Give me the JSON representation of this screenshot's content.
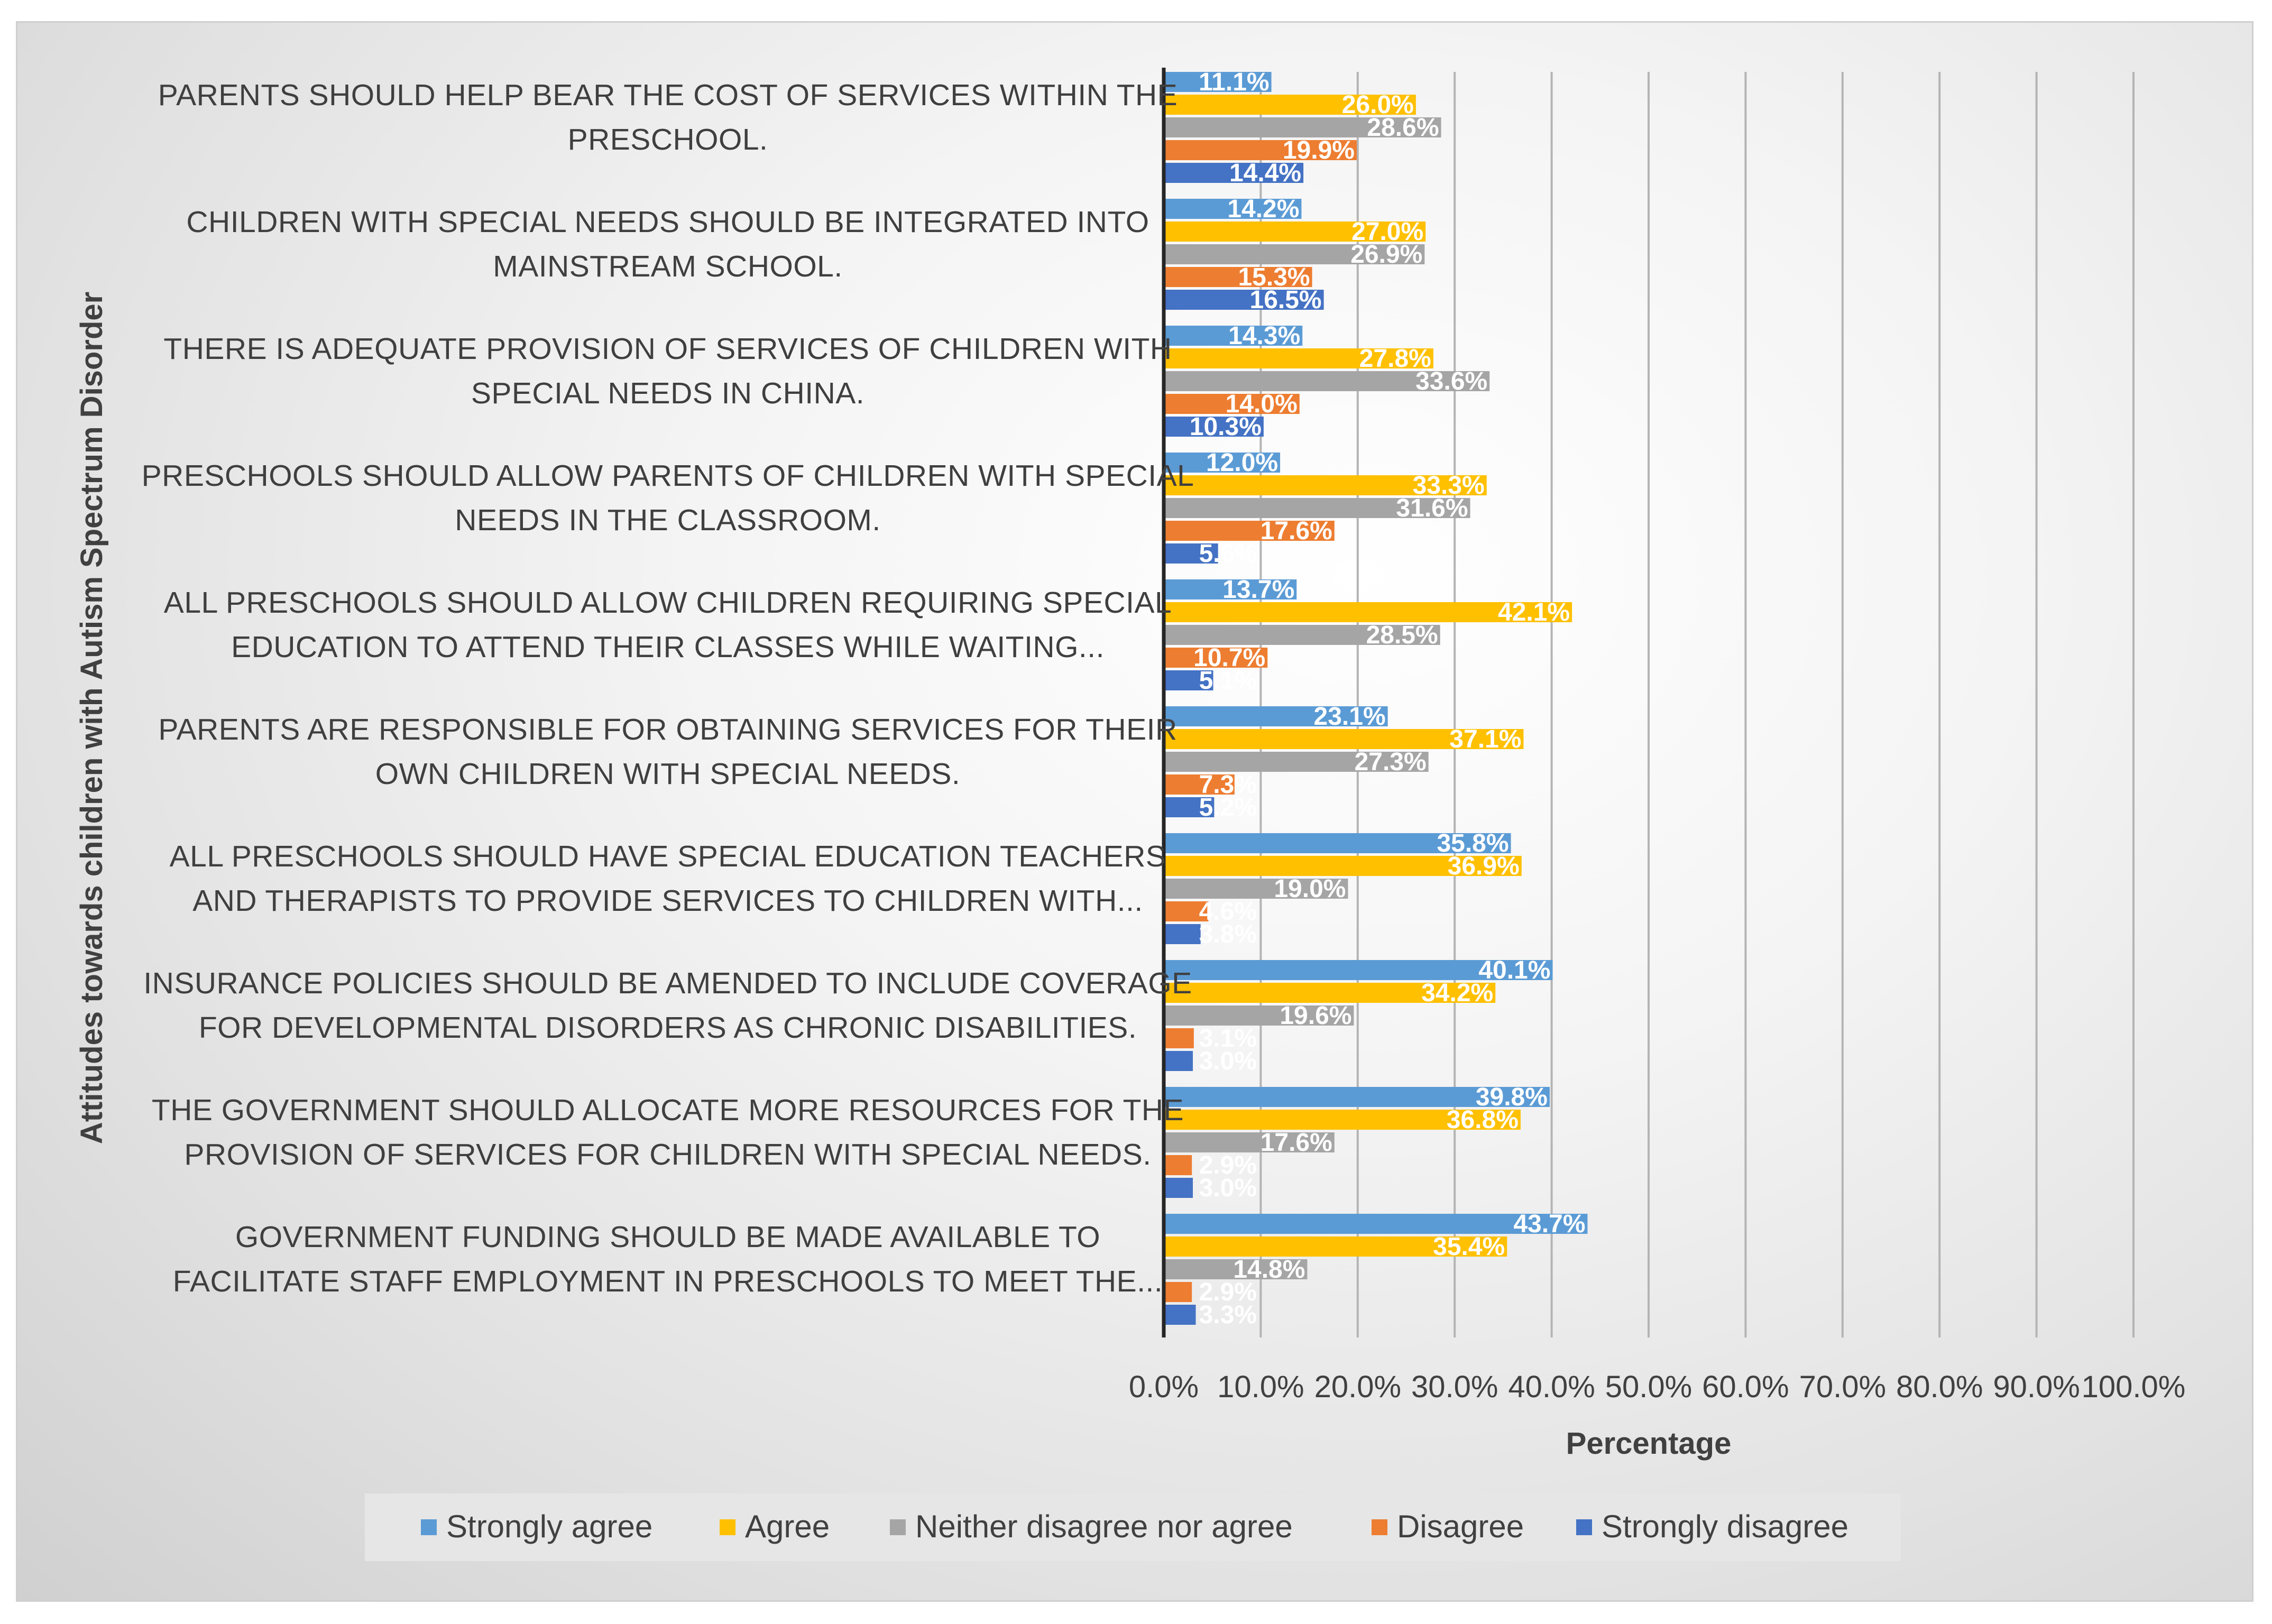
{
  "chart_data": {
    "type": "bar",
    "orientation": "horizontal",
    "title": "",
    "xlabel": "Percentage",
    "ylabel": "Attitudes towards children with Autism Spectrum Disorder",
    "xlim": [
      0,
      100
    ],
    "xticks": [
      "0.0%",
      "10.0%",
      "20.0%",
      "30.0%",
      "40.0%",
      "50.0%",
      "60.0%",
      "70.0%",
      "80.0%",
      "90.0%",
      "100.0%"
    ],
    "grid": true,
    "legend_position": "bottom",
    "categories": [
      [
        "PARENTS SHOULD HELP BEAR THE COST OF SERVICES WITHIN THE",
        "PRESCHOOL."
      ],
      [
        "CHILDREN WITH SPECIAL NEEDS SHOULD BE INTEGRATED INTO",
        "MAINSTREAM SCHOOL."
      ],
      [
        "THERE IS ADEQUATE PROVISION OF SERVICES OF CHILDREN WITH",
        "SPECIAL NEEDS IN CHINA."
      ],
      [
        "PRESCHOOLS SHOULD ALLOW PARENTS OF CHILDREN WITH SPECIAL",
        "NEEDS IN THE CLASSROOM."
      ],
      [
        "ALL PRESCHOOLS SHOULD ALLOW CHILDREN REQUIRING SPECIAL",
        "EDUCATION TO ATTEND THEIR CLASSES WHILE WAITING..."
      ],
      [
        "PARENTS ARE RESPONSIBLE FOR OBTAINING SERVICES FOR THEIR",
        "OWN CHILDREN WITH SPECIAL NEEDS."
      ],
      [
        "ALL PRESCHOOLS SHOULD HAVE SPECIAL EDUCATION TEACHERS",
        "AND THERAPISTS TO PROVIDE SERVICES TO CHILDREN WITH..."
      ],
      [
        "INSURANCE POLICIES SHOULD BE AMENDED TO INCLUDE COVERAGE",
        "FOR DEVELOPMENTAL DISORDERS AS CHRONIC DISABILITIES."
      ],
      [
        "THE GOVERNMENT SHOULD ALLOCATE MORE RESOURCES FOR THE",
        "PROVISION OF SERVICES FOR CHILDREN WITH SPECIAL NEEDS."
      ],
      [
        "GOVERNMENT FUNDING SHOULD BE MADE AVAILABLE TO",
        "FACILITATE STAFF EMPLOYMENT IN PRESCHOOLS TO MEET THE..."
      ]
    ],
    "series": [
      {
        "name": "Strongly agree",
        "color": "#5B9BD5",
        "values": [
          11.1,
          14.2,
          14.3,
          12.0,
          13.7,
          23.1,
          35.8,
          40.1,
          39.8,
          43.7
        ]
      },
      {
        "name": "Agree",
        "color": "#FFC000",
        "values": [
          26.0,
          27.0,
          27.8,
          33.3,
          42.1,
          37.1,
          36.9,
          34.2,
          36.8,
          35.4
        ]
      },
      {
        "name": "Neither disagree nor agree",
        "color": "#A5A5A5",
        "values": [
          28.6,
          26.9,
          33.6,
          31.6,
          28.5,
          27.3,
          19.0,
          19.6,
          17.6,
          14.8
        ]
      },
      {
        "name": "Disagree",
        "color": "#ED7D31",
        "values": [
          19.9,
          15.3,
          14.0,
          17.6,
          10.7,
          7.3,
          4.6,
          3.1,
          2.9,
          2.9
        ]
      },
      {
        "name": "Strongly disagree",
        "color": "#4472C4",
        "values": [
          14.4,
          16.5,
          10.3,
          5.6,
          5.1,
          5.2,
          3.8,
          3.0,
          3.0,
          3.3
        ]
      }
    ]
  }
}
